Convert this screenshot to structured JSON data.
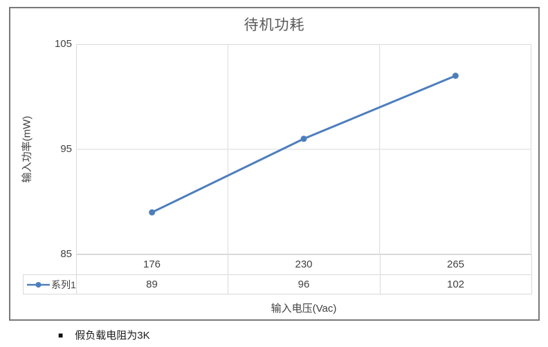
{
  "chart_data": {
    "type": "line",
    "title": "待机功耗",
    "xlabel": "输入电压(Vac)",
    "ylabel": "输入功率(mW)",
    "categories": [
      "176",
      "230",
      "265"
    ],
    "series": [
      {
        "name": "系列1",
        "values": [
          89,
          96,
          102
        ]
      }
    ],
    "ylim": [
      85,
      105
    ],
    "yticks": [
      105,
      95,
      85
    ],
    "grid": true,
    "legend_position": "data-table-left",
    "line_color": "#4d7ebc",
    "marker": "circle"
  },
  "footnote": {
    "bullet": "■",
    "text": "假负载电阻为3K"
  },
  "colors": {
    "line": "#4d7ebc",
    "gridline": "#d9d9d9",
    "frame_border": "#787878",
    "title_text": "#595959",
    "label_text": "#404040"
  }
}
